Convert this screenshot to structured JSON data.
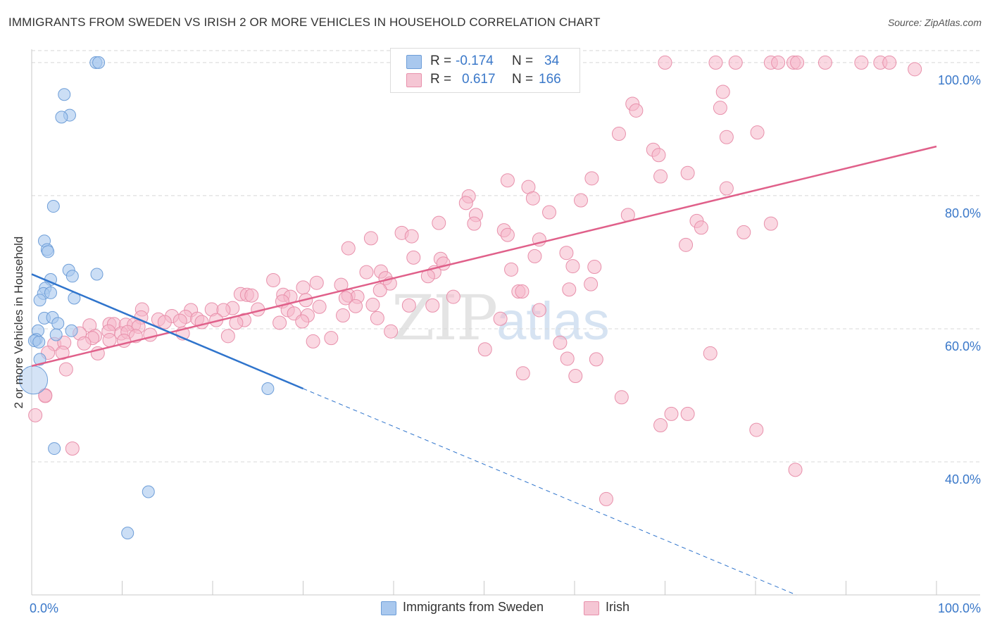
{
  "title": "IMMIGRANTS FROM SWEDEN VS IRISH 2 OR MORE VEHICLES IN HOUSEHOLD CORRELATION CHART",
  "source": "Source: ZipAtlas.com",
  "watermark": {
    "zip": "ZIP",
    "atlas": "atlas"
  },
  "colors": {
    "sweden_fill": "#a9c8ee",
    "sweden_stroke": "#6e9ed8",
    "sweden_line": "#2f74cc",
    "irish_fill": "#f5b8ca",
    "irish_stroke": "#e890ab",
    "irish_line": "#e0608a",
    "grid": "#d8d8d8",
    "tick_label": "#3a78c9"
  },
  "legend": {
    "rows": [
      {
        "r_label": "R = ",
        "r_value": "-0.174",
        "n_label": "N = ",
        "n_value": "34"
      },
      {
        "r_label": "R = ",
        "r_value": "0.617",
        "n_label": "N = ",
        "n_value": "166"
      }
    ]
  },
  "bottom_legend": {
    "sweden": "Immigrants from Sweden",
    "irish": "Irish"
  },
  "chart_data": {
    "type": "scatter",
    "title": "IMMIGRANTS FROM SWEDEN VS IRISH 2 OR MORE VEHICLES IN HOUSEHOLD CORRELATION CHART",
    "xlabel": "",
    "ylabel": "2 or more Vehicles in Household",
    "xlim": [
      0,
      100
    ],
    "ylim": [
      20,
      102
    ],
    "x_tick_labels": [
      "0.0%",
      "100.0%"
    ],
    "y_ticks": [
      40,
      60,
      80,
      100
    ],
    "y_tick_labels": [
      "40.0%",
      "60.0%",
      "80.0%",
      "100.0%"
    ],
    "grid": true,
    "legend_position": "top-center",
    "series": [
      {
        "name": "Immigrants from Sweden",
        "R": -0.174,
        "N": 34,
        "trend": {
          "x": [
            0,
            30
          ],
          "y": [
            68.2,
            51.0
          ],
          "dashed_to": {
            "x": 84.5,
            "y": 20.0
          }
        },
        "points": [
          [
            7.1,
            100
          ],
          [
            7.4,
            100
          ],
          [
            3.6,
            95.2
          ],
          [
            4.2,
            92.1
          ],
          [
            3.3,
            91.8
          ],
          [
            2.4,
            78.4
          ],
          [
            1.4,
            73.2
          ],
          [
            1.7,
            71.9
          ],
          [
            1.8,
            71.6
          ],
          [
            4.1,
            68.8
          ],
          [
            7.2,
            68.2
          ],
          [
            4.5,
            67.9
          ],
          [
            2.1,
            67.4
          ],
          [
            1.5,
            66.1
          ],
          [
            1.3,
            65.3
          ],
          [
            2.1,
            65.4
          ],
          [
            4.7,
            64.6
          ],
          [
            0.9,
            64.3
          ],
          [
            1.4,
            61.6
          ],
          [
            2.3,
            61.7
          ],
          [
            2.9,
            60.8
          ],
          [
            0.7,
            59.7
          ],
          [
            4.4,
            59.7
          ],
          [
            2.7,
            59.1
          ],
          [
            0.5,
            58.4
          ],
          [
            0.3,
            58.2
          ],
          [
            0.8,
            58.0
          ],
          [
            0.9,
            55.4
          ],
          [
            0.2,
            52.3
          ],
          [
            26.1,
            51.0
          ],
          [
            2.5,
            42.0
          ],
          [
            12.9,
            35.5
          ],
          [
            10.6,
            29.3
          ]
        ],
        "big_point_index": 28
      },
      {
        "name": "Irish",
        "R": 0.617,
        "N": 166,
        "trend": {
          "x": [
            0,
            100
          ],
          "y": [
            54.4,
            87.4
          ]
        },
        "points": [
          [
            70.0,
            100
          ],
          [
            75.6,
            100
          ],
          [
            77.8,
            100
          ],
          [
            81.7,
            100
          ],
          [
            82.5,
            100
          ],
          [
            84.2,
            100
          ],
          [
            84.6,
            100
          ],
          [
            87.7,
            100
          ],
          [
            91.7,
            100
          ],
          [
            93.8,
            100
          ],
          [
            94.8,
            100
          ],
          [
            97.6,
            99.0
          ],
          [
            76.4,
            95.6
          ],
          [
            66.4,
            93.8
          ],
          [
            66.8,
            92.8
          ],
          [
            76.1,
            93.2
          ],
          [
            64.9,
            89.3
          ],
          [
            80.2,
            89.5
          ],
          [
            76.8,
            88.8
          ],
          [
            68.7,
            86.9
          ],
          [
            69.3,
            86.1
          ],
          [
            69.5,
            82.9
          ],
          [
            61.9,
            82.6
          ],
          [
            72.5,
            83.4
          ],
          [
            52.6,
            82.3
          ],
          [
            54.9,
            81.3
          ],
          [
            76.8,
            81.1
          ],
          [
            48.3,
            79.9
          ],
          [
            55.4,
            79.6
          ],
          [
            60.7,
            79.3
          ],
          [
            48.0,
            78.9
          ],
          [
            57.2,
            77.5
          ],
          [
            65.9,
            77.1
          ],
          [
            49.1,
            77.1
          ],
          [
            73.5,
            76.2
          ],
          [
            81.7,
            75.8
          ],
          [
            48.9,
            75.8
          ],
          [
            45.0,
            75.9
          ],
          [
            74.0,
            75.2
          ],
          [
            52.2,
            74.8
          ],
          [
            40.9,
            74.4
          ],
          [
            52.6,
            74.1
          ],
          [
            42.0,
            73.9
          ],
          [
            78.7,
            74.5
          ],
          [
            37.5,
            73.6
          ],
          [
            56.1,
            73.4
          ],
          [
            72.3,
            72.6
          ],
          [
            35.0,
            72.1
          ],
          [
            59.1,
            71.4
          ],
          [
            42.2,
            70.7
          ],
          [
            55.6,
            70.9
          ],
          [
            45.2,
            70.5
          ],
          [
            45.5,
            69.8
          ],
          [
            59.8,
            69.4
          ],
          [
            62.2,
            69.3
          ],
          [
            53.0,
            68.9
          ],
          [
            44.5,
            68.5
          ],
          [
            37.0,
            68.5
          ],
          [
            38.6,
            68.6
          ],
          [
            39.1,
            67.6
          ],
          [
            43.8,
            67.9
          ],
          [
            26.7,
            67.3
          ],
          [
            39.6,
            66.8
          ],
          [
            31.5,
            66.9
          ],
          [
            34.2,
            66.6
          ],
          [
            61.8,
            66.7
          ],
          [
            38.5,
            65.8
          ],
          [
            59.4,
            65.9
          ],
          [
            30.0,
            66.2
          ],
          [
            53.8,
            65.6
          ],
          [
            54.2,
            65.6
          ],
          [
            23.1,
            65.2
          ],
          [
            23.8,
            65.1
          ],
          [
            24.3,
            65.0
          ],
          [
            27.8,
            65.1
          ],
          [
            28.6,
            64.8
          ],
          [
            35.0,
            65.0
          ],
          [
            36.0,
            64.8
          ],
          [
            46.6,
            64.8
          ],
          [
            34.7,
            64.6
          ],
          [
            30.3,
            64.3
          ],
          [
            27.7,
            64.1
          ],
          [
            37.7,
            63.6
          ],
          [
            41.7,
            63.5
          ],
          [
            44.3,
            63.5
          ],
          [
            31.8,
            63.3
          ],
          [
            35.8,
            63.4
          ],
          [
            22.2,
            63.1
          ],
          [
            28.3,
            62.8
          ],
          [
            25.0,
            62.9
          ],
          [
            56.1,
            62.8
          ],
          [
            12.2,
            62.9
          ],
          [
            17.6,
            62.8
          ],
          [
            19.9,
            62.9
          ],
          [
            21.2,
            62.8
          ],
          [
            29.0,
            62.3
          ],
          [
            30.5,
            62.0
          ],
          [
            34.4,
            62.0
          ],
          [
            38.2,
            61.6
          ],
          [
            51.8,
            61.5
          ],
          [
            15.5,
            61.9
          ],
          [
            17.0,
            61.8
          ],
          [
            18.3,
            61.5
          ],
          [
            20.4,
            61.3
          ],
          [
            23.5,
            61.3
          ],
          [
            29.9,
            61.1
          ],
          [
            12.1,
            61.7
          ],
          [
            14.0,
            61.4
          ],
          [
            14.7,
            61.0
          ],
          [
            16.4,
            61.2
          ],
          [
            18.8,
            61.0
          ],
          [
            22.6,
            60.9
          ],
          [
            27.4,
            60.9
          ],
          [
            6.4,
            60.5
          ],
          [
            8.6,
            60.7
          ],
          [
            9.1,
            60.7
          ],
          [
            10.4,
            60.6
          ],
          [
            11.3,
            60.6
          ],
          [
            11.8,
            60.3
          ],
          [
            8.5,
            59.6
          ],
          [
            9.9,
            59.3
          ],
          [
            10.6,
            59.5
          ],
          [
            13.1,
            59.1
          ],
          [
            16.7,
            59.3
          ],
          [
            39.7,
            59.6
          ],
          [
            5.3,
            59.3
          ],
          [
            7.0,
            58.9
          ],
          [
            11.5,
            58.9
          ],
          [
            21.7,
            58.9
          ],
          [
            6.7,
            58.6
          ],
          [
            8.6,
            58.3
          ],
          [
            10.2,
            58.2
          ],
          [
            2.5,
            57.7
          ],
          [
            3.6,
            57.9
          ],
          [
            5.8,
            57.8
          ],
          [
            31.1,
            58.1
          ],
          [
            33.1,
            58.6
          ],
          [
            58.4,
            57.9
          ],
          [
            1.8,
            56.4
          ],
          [
            3.4,
            56.4
          ],
          [
            7.3,
            56.3
          ],
          [
            50.1,
            56.9
          ],
          [
            75.0,
            56.3
          ],
          [
            59.2,
            55.5
          ],
          [
            62.4,
            55.4
          ],
          [
            3.8,
            53.9
          ],
          [
            54.3,
            53.3
          ],
          [
            60.1,
            52.9
          ],
          [
            1.5,
            50.0
          ],
          [
            1.5,
            49.9
          ],
          [
            65.2,
            49.7
          ],
          [
            0.4,
            47.0
          ],
          [
            70.7,
            47.2
          ],
          [
            72.5,
            47.2
          ],
          [
            69.5,
            45.5
          ],
          [
            80.1,
            44.8
          ],
          [
            4.5,
            42.0
          ],
          [
            84.4,
            38.8
          ],
          [
            63.5,
            34.4
          ]
        ]
      }
    ]
  }
}
